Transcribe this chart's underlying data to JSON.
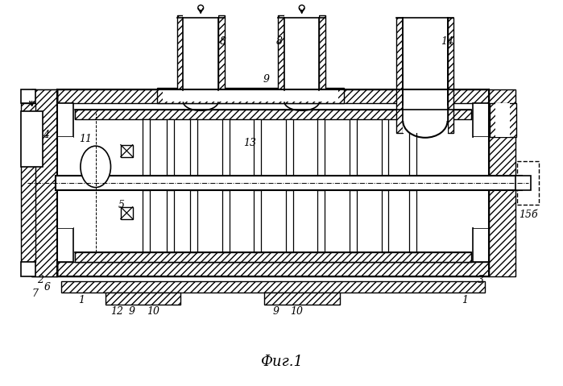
{
  "title": "Фиг.1",
  "bg_color": "#ffffff",
  "line_color": "#000000",
  "fig_width": 6.99,
  "fig_height": 4.79,
  "dpi": 100
}
